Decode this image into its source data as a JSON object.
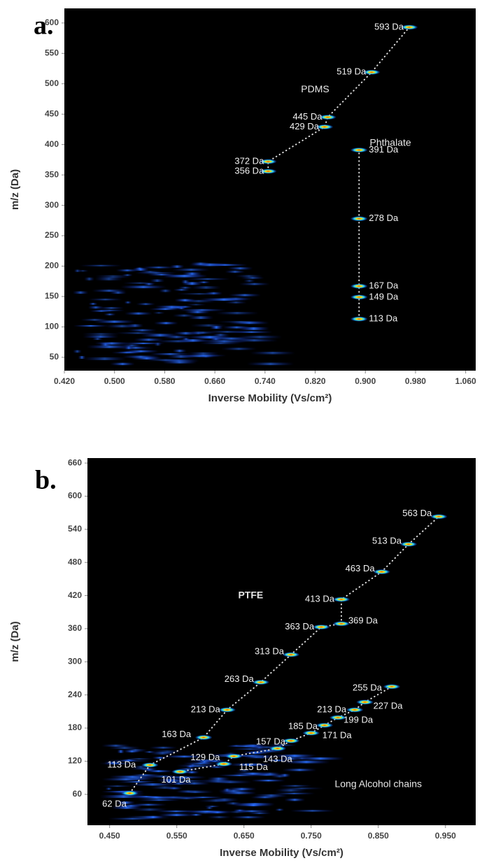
{
  "chart_data": [
    {
      "type": "scatter",
      "panel_label": "a.",
      "x_label": "Inverse Mobility (Vs/cm²)",
      "y_label": "m/z (Da)",
      "xlim": [
        0.42,
        1.076
      ],
      "ylim": [
        28,
        624
      ],
      "xticks": [
        {
          "value": 0.42,
          "label": "0.420"
        },
        {
          "value": 0.5,
          "label": "0.500"
        },
        {
          "value": 0.58,
          "label": "0.580"
        },
        {
          "value": 0.66,
          "label": "0.660"
        },
        {
          "value": 0.74,
          "label": "0.740"
        },
        {
          "value": 0.82,
          "label": "0.820"
        },
        {
          "value": 0.9,
          "label": "0.900"
        },
        {
          "value": 0.98,
          "label": "0.980"
        },
        {
          "value": 1.06,
          "label": "1.060"
        }
      ],
      "yticks": [
        50,
        100,
        150,
        200,
        250,
        300,
        350,
        400,
        450,
        500,
        550,
        600
      ],
      "series": [
        {
          "name": "PDMS",
          "x": [
            0.745,
            0.745,
            0.835,
            0.84,
            0.91,
            0.97
          ],
          "values": [
            356,
            372,
            429,
            445,
            519,
            593
          ],
          "value_labels": [
            "356 Da",
            "372 Da",
            "429 Da",
            "445 Da",
            "519 Da",
            "593 Da"
          ]
        },
        {
          "name": "Phthalate",
          "x": [
            0.89,
            0.89,
            0.89,
            0.89,
            0.89
          ],
          "values": [
            113,
            149,
            167,
            278,
            391
          ],
          "value_labels": [
            "113 Da",
            "149 Da",
            "167 Da",
            "278 Da",
            "391 Da"
          ]
        }
      ]
    },
    {
      "type": "scatter",
      "panel_label": "b.",
      "x_label": "Inverse Mobility (Vs/cm²)",
      "y_label": "m/z (Da)",
      "xlim": [
        0.417,
        0.995
      ],
      "ylim": [
        4,
        669
      ],
      "xticks": [
        {
          "value": 0.45,
          "label": "0.450"
        },
        {
          "value": 0.55,
          "label": "0.550"
        },
        {
          "value": 0.65,
          "label": "0.650"
        },
        {
          "value": 0.75,
          "label": "0.750"
        },
        {
          "value": 0.85,
          "label": "0.850"
        },
        {
          "value": 0.95,
          "label": "0.950"
        }
      ],
      "yticks": [
        60,
        120,
        180,
        240,
        300,
        360,
        420,
        480,
        540,
        600,
        660
      ],
      "series": [
        {
          "name": "PTFE",
          "x": [
            0.48,
            0.51,
            0.59,
            0.625,
            0.675,
            0.72,
            0.765,
            0.795,
            0.795,
            0.855,
            0.895,
            0.94
          ],
          "values": [
            62,
            113,
            163,
            213,
            263,
            313,
            363,
            369,
            413,
            463,
            513,
            563
          ],
          "value_labels": [
            "62 Da",
            "113 Da",
            "163 Da",
            "213 Da",
            "263 Da",
            "313 Da",
            "363 Da",
            "369 Da",
            "413 Da",
            "463 Da",
            "513 Da",
            "563 Da"
          ]
        },
        {
          "name": "Long Alcohol chains",
          "x": [
            0.555,
            0.62,
            0.635,
            0.7,
            0.72,
            0.75,
            0.77,
            0.79,
            0.815,
            0.83,
            0.87
          ],
          "values": [
            101,
            115,
            129,
            143,
            157,
            171,
            185,
            199,
            213,
            227,
            255
          ],
          "value_labels": [
            "101 Da",
            "115 Da",
            "129 Da",
            "143 Da",
            "157 Da",
            "171 Da",
            "185 Da",
            "199 Da",
            "213 Da",
            "227 Da",
            "255 Da"
          ]
        }
      ]
    }
  ]
}
